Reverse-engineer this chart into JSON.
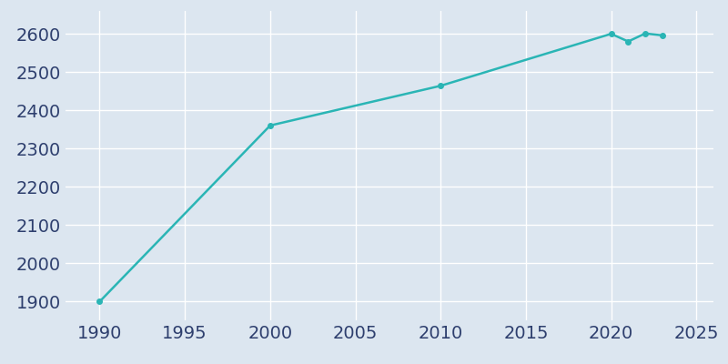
{
  "years": [
    1990,
    2000,
    2010,
    2020,
    2021,
    2022,
    2023
  ],
  "population": [
    1899,
    2360,
    2464,
    2600,
    2580,
    2601,
    2596
  ],
  "line_color": "#2ab5b5",
  "marker_color": "#2ab5b5",
  "background_color": "#dce6f0",
  "grid_color": "#ffffff",
  "text_color": "#2e3f6e",
  "xlim": [
    1988,
    2026
  ],
  "ylim": [
    1850,
    2660
  ],
  "xticks": [
    1990,
    1995,
    2000,
    2005,
    2010,
    2015,
    2020,
    2025
  ],
  "yticks": [
    1900,
    2000,
    2100,
    2200,
    2300,
    2400,
    2500,
    2600
  ],
  "line_width": 1.8,
  "marker_size": 4,
  "tick_fontsize": 14
}
